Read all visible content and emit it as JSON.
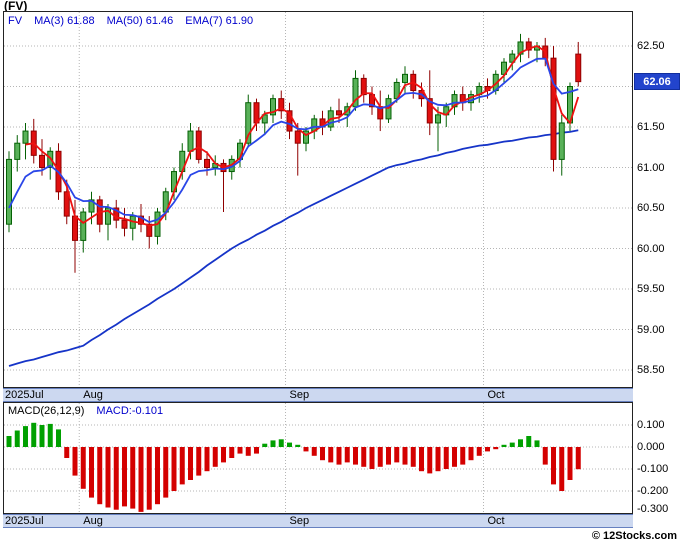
{
  "title": "(FV)",
  "legend": {
    "symbol": "FV",
    "items": [
      {
        "label": "MA(3)",
        "value": "61.88"
      },
      {
        "label": "MA(50)",
        "value": "61.46"
      },
      {
        "label": "EMA(7)",
        "value": "61.90"
      }
    ]
  },
  "price_axis": {
    "labels": [
      "62.50",
      "61.50",
      "61.00",
      "60.50",
      "60.00",
      "59.50",
      "59.00",
      "58.50"
    ],
    "last_price": "62.06"
  },
  "macd_panel": {
    "title": "MACD(26,12,9)",
    "current_label": "MACD:-0.101",
    "axis_labels": [
      "0.100",
      "0.000",
      "-0.100",
      "-0.200",
      "-0.300"
    ]
  },
  "watermark": "© 12Stocks.com",
  "colors": {
    "up_fill": "#59b159",
    "up_edge": "#046104",
    "down_fill": "#e01010",
    "down_edge": "#8f0000",
    "ma3": "#ee1111",
    "ema7": "#2a46e8",
    "ma50": "#1634c8",
    "macd_up": "#00a000",
    "macd_down": "#d40000",
    "price_tag_bg": "#2244cc",
    "band_bg": "#ccd8f0",
    "accent_blue": "#0000cc",
    "grid": "#b5b5b5"
  },
  "chart_data": [
    {
      "type": "candlestick",
      "title": "(FV) daily price with MA(3), MA(50), EMA(7) overlays",
      "ylim": [
        58.3,
        62.8
      ],
      "y_ticks": [
        62.5,
        62.0,
        61.5,
        61.0,
        60.5,
        60.0,
        59.5,
        59.0,
        58.5
      ],
      "month_ticks": [
        {
          "label": "2025Jul",
          "index": 0
        },
        {
          "label": "Aug",
          "index": 9
        },
        {
          "label": "Sep",
          "index": 34
        },
        {
          "label": "Oct",
          "index": 58
        }
      ],
      "last_close": 62.06,
      "overlay_values": {
        "ma3": 61.88,
        "ma50": 61.46,
        "ema7": 61.9
      },
      "candles_ohlc": [
        [
          60.3,
          61.2,
          60.2,
          61.1
        ],
        [
          61.1,
          61.4,
          60.95,
          61.3
        ],
        [
          61.3,
          61.55,
          61.1,
          61.45
        ],
        [
          61.45,
          61.6,
          61.05,
          61.15
        ],
        [
          61.15,
          61.35,
          60.9,
          61.0
        ],
        [
          61.0,
          61.25,
          60.85,
          61.2
        ],
        [
          61.2,
          61.3,
          60.6,
          60.7
        ],
        [
          60.7,
          60.85,
          60.3,
          60.4
        ],
        [
          60.4,
          60.6,
          59.7,
          60.1
        ],
        [
          60.1,
          60.5,
          59.95,
          60.45
        ],
        [
          60.45,
          60.7,
          60.3,
          60.6
        ],
        [
          60.6,
          60.65,
          60.2,
          60.3
        ],
        [
          60.3,
          60.55,
          60.1,
          60.5
        ],
        [
          60.5,
          60.6,
          60.25,
          60.35
        ],
        [
          60.35,
          60.5,
          60.15,
          60.25
        ],
        [
          60.25,
          60.45,
          60.1,
          60.4
        ],
        [
          60.4,
          60.55,
          60.2,
          60.3
        ],
        [
          60.3,
          60.4,
          60.0,
          60.15
        ],
        [
          60.15,
          60.5,
          60.05,
          60.45
        ],
        [
          60.45,
          60.75,
          60.35,
          60.7
        ],
        [
          60.7,
          61.0,
          60.6,
          60.95
        ],
        [
          60.95,
          61.3,
          60.85,
          61.2
        ],
        [
          61.2,
          61.55,
          61.1,
          61.45
        ],
        [
          61.45,
          61.5,
          61.05,
          61.1
        ],
        [
          61.1,
          61.2,
          60.9,
          61.0
        ],
        [
          61.0,
          61.15,
          60.9,
          61.05
        ],
        [
          61.05,
          61.1,
          60.45,
          60.95
        ],
        [
          60.95,
          61.15,
          60.85,
          61.1
        ],
        [
          61.1,
          61.35,
          61.0,
          61.3
        ],
        [
          61.3,
          61.9,
          61.25,
          61.8
        ],
        [
          61.8,
          61.85,
          61.45,
          61.55
        ],
        [
          61.55,
          61.7,
          61.4,
          61.65
        ],
        [
          61.65,
          61.9,
          61.55,
          61.85
        ],
        [
          61.85,
          61.95,
          61.6,
          61.7
        ],
        [
          61.7,
          61.8,
          61.35,
          61.45
        ],
        [
          61.45,
          61.55,
          60.9,
          61.3
        ],
        [
          61.3,
          61.5,
          61.2,
          61.45
        ],
        [
          61.45,
          61.65,
          61.35,
          61.6
        ],
        [
          61.6,
          61.7,
          61.4,
          61.5
        ],
        [
          61.5,
          61.75,
          61.45,
          61.7
        ],
        [
          61.7,
          61.85,
          61.55,
          61.65
        ],
        [
          61.65,
          61.8,
          61.5,
          61.75
        ],
        [
          61.75,
          62.2,
          61.7,
          62.1
        ],
        [
          62.1,
          62.15,
          61.8,
          61.9
        ],
        [
          61.9,
          62.0,
          61.65,
          61.75
        ],
        [
          61.75,
          61.95,
          61.45,
          61.6
        ],
        [
          61.6,
          61.9,
          61.55,
          61.85
        ],
        [
          61.85,
          62.1,
          61.8,
          62.05
        ],
        [
          62.05,
          62.25,
          61.9,
          62.15
        ],
        [
          62.15,
          62.2,
          61.85,
          61.95
        ],
        [
          61.95,
          62.05,
          61.75,
          61.85
        ],
        [
          61.85,
          62.2,
          61.4,
          61.55
        ],
        [
          61.55,
          61.75,
          61.2,
          61.65
        ],
        [
          61.65,
          61.8,
          61.5,
          61.75
        ],
        [
          61.75,
          61.95,
          61.65,
          61.9
        ],
        [
          61.9,
          62.0,
          61.7,
          61.8
        ],
        [
          61.8,
          61.95,
          61.7,
          61.9
        ],
        [
          61.9,
          62.05,
          61.8,
          62.0
        ],
        [
          62.0,
          62.1,
          61.85,
          61.95
        ],
        [
          61.95,
          62.2,
          61.9,
          62.15
        ],
        [
          62.15,
          62.35,
          62.05,
          62.3
        ],
        [
          62.3,
          62.45,
          62.2,
          62.4
        ],
        [
          62.4,
          62.65,
          62.3,
          62.55
        ],
        [
          62.55,
          62.6,
          62.35,
          62.45
        ],
        [
          62.45,
          62.55,
          62.3,
          62.5
        ],
        [
          62.5,
          62.6,
          62.25,
          62.35
        ],
        [
          62.35,
          62.5,
          60.95,
          61.1
        ],
        [
          61.1,
          61.65,
          60.9,
          61.55
        ],
        [
          61.55,
          62.05,
          61.45,
          62.0
        ],
        [
          62.4,
          62.55,
          62.0,
          62.06
        ]
      ],
      "ma50_values": [
        58.55,
        58.58,
        58.61,
        58.63,
        58.66,
        58.69,
        58.72,
        58.74,
        58.77,
        58.8,
        58.87,
        58.93,
        59.0,
        59.06,
        59.13,
        59.19,
        59.25,
        59.31,
        59.38,
        59.44,
        59.5,
        59.57,
        59.64,
        59.71,
        59.79,
        59.86,
        59.93,
        60.0,
        60.06,
        60.11,
        60.17,
        60.22,
        60.28,
        60.33,
        60.39,
        60.44,
        60.5,
        60.55,
        60.6,
        60.65,
        60.7,
        60.75,
        60.8,
        60.85,
        60.9,
        60.95,
        61.0,
        61.03,
        61.05,
        61.08,
        61.1,
        61.13,
        61.15,
        61.18,
        61.2,
        61.23,
        61.25,
        61.27,
        61.28,
        61.3,
        61.32,
        61.33,
        61.35,
        61.37,
        61.38,
        61.4,
        61.41,
        61.43,
        61.44,
        61.46
      ]
    },
    {
      "type": "bar",
      "title": "MACD(26,12,9) histogram",
      "ylim": [
        -0.32,
        0.13
      ],
      "y_ticks": [
        0.1,
        0.0,
        -0.1,
        -0.2,
        -0.3
      ],
      "last_value": -0.101,
      "values": [
        0.05,
        0.075,
        0.095,
        0.11,
        0.1,
        0.105,
        0.08,
        -0.05,
        -0.13,
        -0.19,
        -0.23,
        -0.26,
        -0.275,
        -0.285,
        -0.27,
        -0.28,
        -0.295,
        -0.285,
        -0.26,
        -0.23,
        -0.2,
        -0.17,
        -0.15,
        -0.13,
        -0.11,
        -0.09,
        -0.07,
        -0.05,
        -0.03,
        -0.04,
        -0.03,
        0.015,
        0.03,
        0.035,
        0.02,
        0.01,
        -0.02,
        -0.04,
        -0.06,
        -0.07,
        -0.08,
        -0.07,
        -0.08,
        -0.09,
        -0.1,
        -0.09,
        -0.08,
        -0.07,
        -0.08,
        -0.09,
        -0.11,
        -0.12,
        -0.11,
        -0.1,
        -0.09,
        -0.08,
        -0.06,
        -0.04,
        -0.02,
        -0.01,
        0.01,
        0.02,
        0.035,
        0.05,
        0.03,
        -0.08,
        -0.17,
        -0.2,
        -0.15,
        -0.101
      ]
    }
  ]
}
